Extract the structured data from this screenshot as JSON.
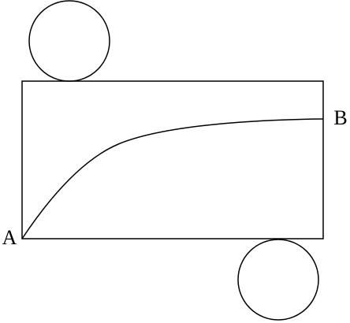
{
  "labels": {
    "start": "A",
    "end": "B"
  }
}
